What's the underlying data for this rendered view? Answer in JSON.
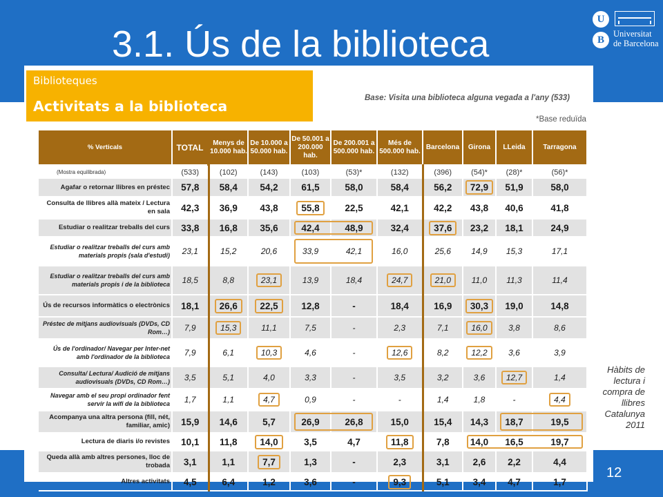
{
  "slide": {
    "title": "3.1. Ús de la biblioteca",
    "page_number": "12",
    "side_note": "Hàbits de lectura i compra de llibres Catalunya 2011"
  },
  "logo": {
    "seal_top": "U",
    "seal_bottom": "B",
    "line1": "Universitat",
    "line2": "de Barcelona"
  },
  "header": {
    "subtitle": "Biblioteques",
    "title": "Activitats a la biblioteca"
  },
  "notes": {
    "base": "Base: Visita una biblioteca alguna vegada a l'any (533)",
    "reduced": "*Base reduïda"
  },
  "table": {
    "corner": "% Verticals",
    "columns": [
      "TOTAL",
      "Menys de 10.000 hab.",
      "De 10.000 a 50.000 hab.",
      "De 50.001 a 200.000 hab.",
      "De 200.001 a 500.000 hab.",
      "Més de 500.000 hab.",
      "Barcelona",
      "Girona",
      "LLeida",
      "Tarragona"
    ],
    "base_row": {
      "label": "(Mostra equilibrada)",
      "values": [
        "(533)",
        "(102)",
        "(143)",
        "(103)",
        "(53)*",
        "(132)",
        "(396)",
        "(54)*",
        "(28)*",
        "(56)*"
      ]
    },
    "rows": [
      {
        "label": "Agafar o retornar llibres en préstec",
        "values": [
          "57,8",
          "58,4",
          "54,2",
          "61,5",
          "58,0",
          "58,4",
          "56,2",
          "72,9",
          "51,9",
          "58,0"
        ]
      },
      {
        "label": "Consulta de llibres allà mateix / Lectura en sala",
        "values": [
          "42,3",
          "36,9",
          "43,8",
          "55,8",
          "22,5",
          "42,1",
          "42,2",
          "43,8",
          "40,6",
          "41,8"
        ]
      },
      {
        "label": "Estudiar o realitzar treballs del curs",
        "values": [
          "33,8",
          "16,8",
          "35,6",
          "42,4",
          "48,9",
          "32,4",
          "37,6",
          "23,2",
          "18,1",
          "24,9"
        ]
      },
      {
        "label": "Estudiar o realitzar treballs del curs amb materials propis (sala d'estudi)",
        "values": [
          "23,1",
          "15,2",
          "20,6",
          "33,9",
          "42,1",
          "16,0",
          "25,6",
          "14,9",
          "15,3",
          "17,1"
        ]
      },
      {
        "label": "Estudiar o realitzar treballs del curs amb materials propis i de la biblioteca",
        "values": [
          "18,5",
          "8,8",
          "23,1",
          "13,9",
          "18,4",
          "24,7",
          "21,0",
          "11,0",
          "11,3",
          "11,4"
        ]
      },
      {
        "label": "Ús de recursos informàtics o electrònics",
        "values": [
          "18,1",
          "26,6",
          "22,5",
          "12,8",
          "-",
          "18,4",
          "16,9",
          "30,3",
          "19,0",
          "14,8"
        ]
      },
      {
        "label": "Préstec de mitjans audiovisuals (DVDs, CD Rom…)",
        "values": [
          "7,9",
          "15,3",
          "11,1",
          "7,5",
          "-",
          "2,3",
          "7,1",
          "16,0",
          "3,8",
          "8,6"
        ]
      },
      {
        "label": "Ús de l'ordinador/ Navegar per Inter-net amb l'ordinador de la biblioteca",
        "values": [
          "7,9",
          "6,1",
          "10,3",
          "4,6",
          "-",
          "12,6",
          "8,2",
          "12,2",
          "3,6",
          "3,9"
        ]
      },
      {
        "label": "Consulta/ Lectura/ Audició de mitjans audiovisuals (DVDs, CD Rom…)",
        "values": [
          "3,5",
          "5,1",
          "4,0",
          "3,3",
          "-",
          "3,5",
          "3,2",
          "3,6",
          "12,7",
          "1,4"
        ]
      },
      {
        "label": "Navegar amb el seu propi ordinador fent servir la wifi de la biblioteca",
        "values": [
          "1,7",
          "1,1",
          "4,7",
          "0,9",
          "-",
          "-",
          "1,4",
          "1,8",
          "-",
          "4,4"
        ]
      },
      {
        "label": "Acompanya una altra persona (fill, nét, familiar, amic)",
        "values": [
          "15,9",
          "14,6",
          "5,7",
          "26,9",
          "26,8",
          "15,0",
          "15,4",
          "14,3",
          "18,7",
          "19,5"
        ]
      },
      {
        "label": "Lectura de diaris i/o revistes",
        "values": [
          "10,1",
          "11,8",
          "14,0",
          "3,5",
          "4,7",
          "11,8",
          "7,8",
          "14,0",
          "16,5",
          "19,7"
        ]
      },
      {
        "label": "Queda allà amb altres persones, lloc de trobada",
        "values": [
          "3,1",
          "1,1",
          "7,7",
          "1,3",
          "-",
          "2,3",
          "3,1",
          "2,6",
          "2,2",
          "4,4"
        ]
      },
      {
        "label": "Altres activitats",
        "values": [
          "4,5",
          "6,4",
          "1,2",
          "3,6",
          "-",
          "9,3",
          "5,1",
          "3,4",
          "4,7",
          "1,7"
        ]
      }
    ]
  },
  "colors": {
    "brand_blue": "#1F6FC5",
    "header_orange": "#F7B200",
    "table_header_brown": "#A36A14",
    "highlight": "#E0A040"
  }
}
